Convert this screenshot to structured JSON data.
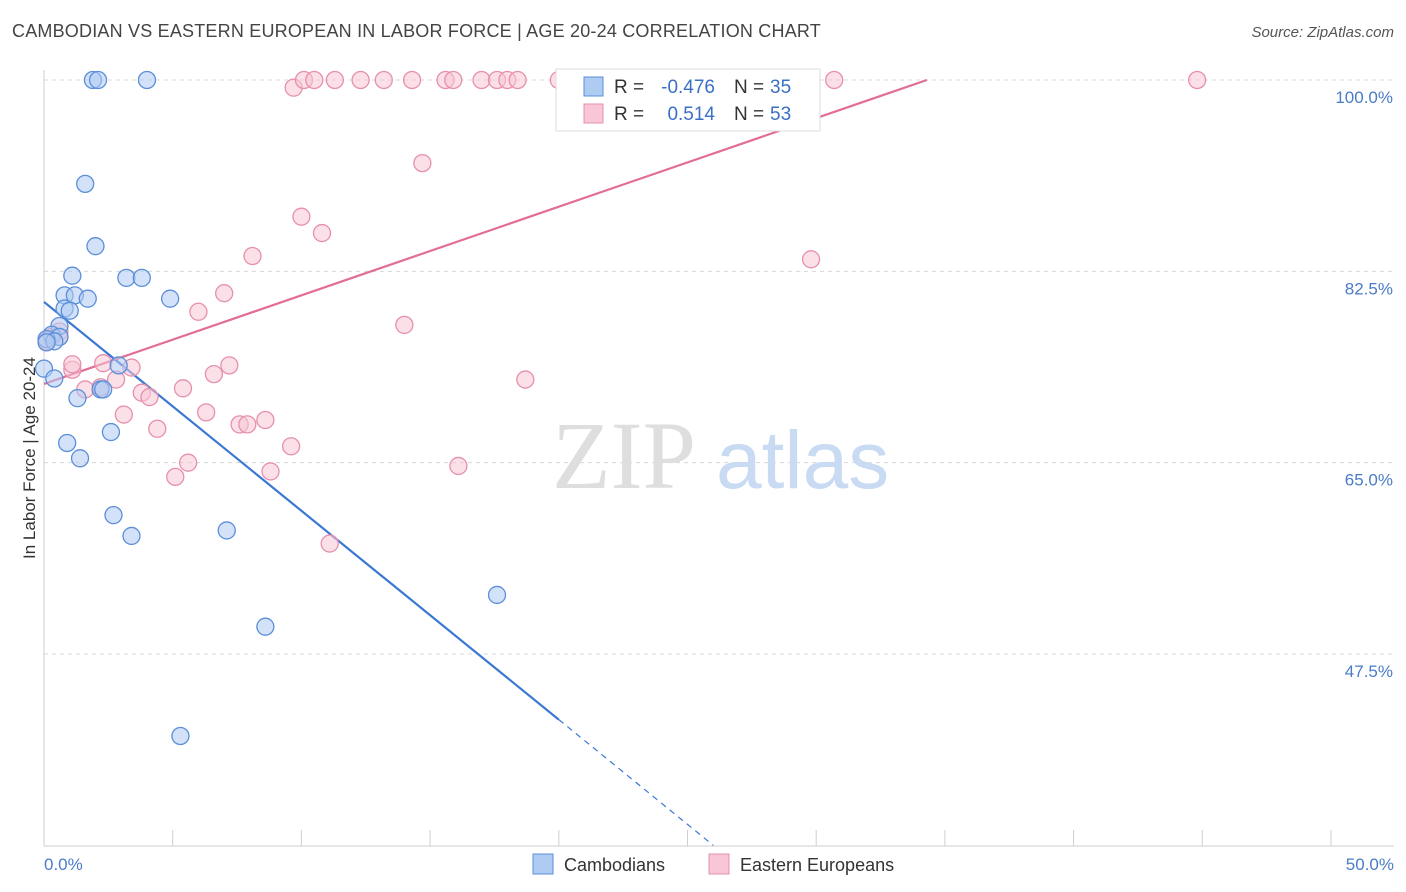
{
  "header": {
    "title": "CAMBODIAN VS EASTERN EUROPEAN IN LABOR FORCE | AGE 20-24 CORRELATION CHART",
    "source": "Source: ZipAtlas.com"
  },
  "watermark": {
    "zip": "ZIP",
    "atlas": "atlas"
  },
  "colors": {
    "cambodian_fill": "#aecbf2",
    "cambodian_stroke": "#5b8fd9",
    "cambodian_line": "#3a78d4",
    "eastern_fill": "#f8c6d6",
    "eastern_stroke": "#e690ad",
    "eastern_line": "#e36d96",
    "grid": "#d8d8d8",
    "tick_text": "#4a7cc7"
  },
  "stats_legend": {
    "rows": [
      {
        "r_label": "R =",
        "r_value": "-0.476",
        "n_label": "N =",
        "n_value": "35",
        "series": "cambodians"
      },
      {
        "r_label": "R =",
        "r_value": "0.514",
        "n_label": "N =",
        "n_value": "53",
        "series": "eastern"
      }
    ]
  },
  "bottom_legend": {
    "cambodians": "Cambodians",
    "eastern": "Eastern Europeans"
  },
  "chart_data": {
    "type": "scatter",
    "title": "CAMBODIAN VS EASTERN EUROPEAN IN LABOR FORCE | AGE 20-24 CORRELATION CHART",
    "xlabel": "",
    "ylabel": "In Labor Force | Age 20-24",
    "xlim": [
      0,
      50
    ],
    "ylim": [
      32,
      102
    ],
    "x_tick_labels": {
      "left": "0.0%",
      "right": "50.0%"
    },
    "y_ticks": [
      {
        "value": 100.0,
        "label": "100.0%"
      },
      {
        "value": 82.5,
        "label": "82.5%"
      },
      {
        "value": 65.0,
        "label": "65.0%"
      },
      {
        "value": 47.5,
        "label": "47.5%"
      }
    ],
    "series": [
      {
        "name": "Cambodians",
        "r": -0.476,
        "n": 35,
        "points": [
          [
            1.9,
            100
          ],
          [
            2.1,
            100
          ],
          [
            4.0,
            100
          ],
          [
            1.6,
            90.5
          ],
          [
            2.0,
            84.8
          ],
          [
            1.1,
            82.1
          ],
          [
            3.2,
            81.9
          ],
          [
            3.8,
            81.9
          ],
          [
            0.8,
            80.3
          ],
          [
            1.2,
            80.3
          ],
          [
            1.7,
            80.0
          ],
          [
            4.9,
            80.0
          ],
          [
            0.8,
            79.1
          ],
          [
            1.0,
            78.9
          ],
          [
            0.6,
            77.5
          ],
          [
            0.3,
            76.7
          ],
          [
            0.6,
            76.5
          ],
          [
            0.1,
            76.3
          ],
          [
            0.4,
            76.1
          ],
          [
            0.0,
            73.6
          ],
          [
            0.4,
            72.7
          ],
          [
            2.9,
            73.9
          ],
          [
            2.2,
            71.7
          ],
          [
            2.3,
            71.7
          ],
          [
            1.3,
            70.9
          ],
          [
            2.6,
            67.8
          ],
          [
            0.9,
            66.8
          ],
          [
            1.4,
            65.4
          ],
          [
            2.7,
            60.2
          ],
          [
            3.4,
            58.3
          ],
          [
            7.1,
            58.8
          ],
          [
            17.6,
            52.9
          ],
          [
            8.6,
            50.0
          ],
          [
            5.3,
            40.0
          ],
          [
            0.1,
            76.0
          ]
        ]
      },
      {
        "name": "Eastern Europeans",
        "r": 0.514,
        "n": 53,
        "points": [
          [
            9.7,
            99.3
          ],
          [
            10.1,
            100
          ],
          [
            10.5,
            100
          ],
          [
            11.3,
            100
          ],
          [
            12.3,
            100
          ],
          [
            13.2,
            100
          ],
          [
            14.3,
            100
          ],
          [
            15.6,
            100
          ],
          [
            15.9,
            100
          ],
          [
            17.0,
            100
          ],
          [
            17.6,
            100
          ],
          [
            18.0,
            100
          ],
          [
            18.4,
            100
          ],
          [
            20.0,
            100
          ],
          [
            30.7,
            100
          ],
          [
            44.8,
            100
          ],
          [
            14.7,
            92.4
          ],
          [
            10.0,
            87.5
          ],
          [
            10.8,
            86.0
          ],
          [
            8.1,
            83.9
          ],
          [
            29.8,
            83.6
          ],
          [
            7.0,
            80.5
          ],
          [
            6.0,
            78.8
          ],
          [
            14.0,
            77.6
          ],
          [
            0.6,
            77.0
          ],
          [
            0.3,
            76.5
          ],
          [
            0.6,
            76.5
          ],
          [
            0.1,
            76.1
          ],
          [
            1.1,
            73.5
          ],
          [
            1.1,
            74.0
          ],
          [
            2.3,
            74.1
          ],
          [
            3.4,
            73.7
          ],
          [
            7.2,
            73.9
          ],
          [
            6.6,
            73.1
          ],
          [
            2.8,
            72.6
          ],
          [
            2.2,
            71.9
          ],
          [
            1.6,
            71.7
          ],
          [
            3.8,
            71.4
          ],
          [
            4.1,
            71.0
          ],
          [
            5.4,
            71.8
          ],
          [
            18.7,
            72.6
          ],
          [
            3.1,
            69.4
          ],
          [
            6.3,
            69.6
          ],
          [
            8.6,
            68.9
          ],
          [
            7.6,
            68.5
          ],
          [
            7.9,
            68.5
          ],
          [
            9.6,
            66.5
          ],
          [
            4.4,
            68.1
          ],
          [
            5.6,
            65.0
          ],
          [
            5.1,
            63.7
          ],
          [
            8.8,
            64.2
          ],
          [
            16.1,
            64.7
          ],
          [
            11.1,
            57.6
          ]
        ]
      }
    ],
    "trend_lines": [
      {
        "series": "Cambodians",
        "from": [
          0,
          79.7
        ],
        "to": [
          20,
          41.5
        ],
        "dashed_to": [
          26,
          30.0
        ]
      },
      {
        "series": "Eastern Europeans",
        "from": [
          0,
          72.2
        ],
        "to": [
          34.3,
          100
        ]
      }
    ],
    "legend_position": "top-center",
    "grid": true
  }
}
